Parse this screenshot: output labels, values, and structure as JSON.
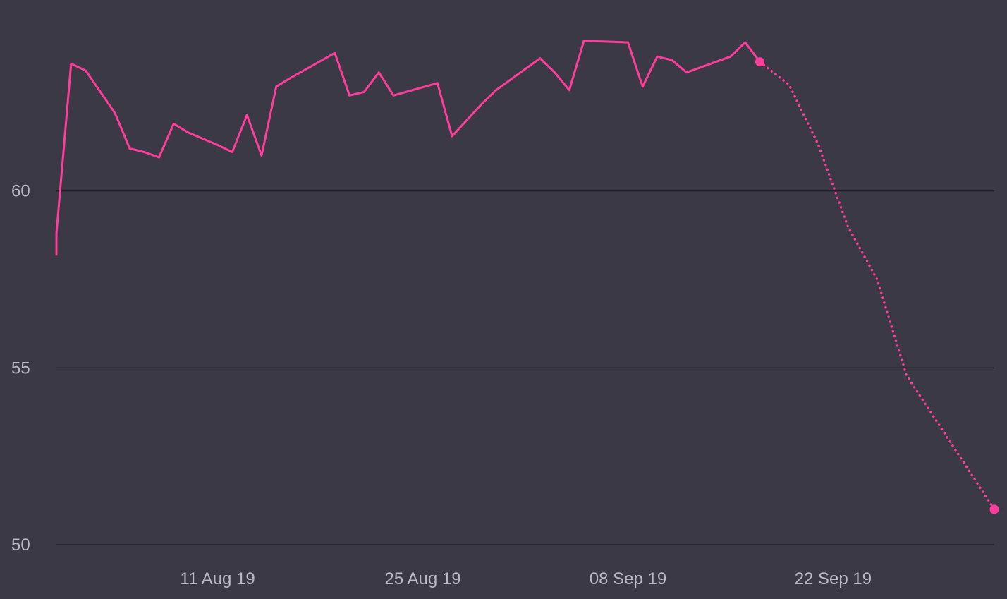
{
  "chart_data": {
    "type": "line",
    "title": "",
    "xlabel": "",
    "ylabel": "",
    "ylim": [
      50,
      65
    ],
    "xlim": [
      "2019-07-31",
      "2019-10-03"
    ],
    "grid": true,
    "legend": "none",
    "y_ticks": [
      {
        "value": 50,
        "label": "50"
      },
      {
        "value": 55,
        "label": "55"
      },
      {
        "value": 60,
        "label": "60"
      }
    ],
    "x_ticks": [
      {
        "date": "2019-08-11",
        "label": "11 Aug 19"
      },
      {
        "date": "2019-08-25",
        "label": "25 Aug 19"
      },
      {
        "date": "2019-09-08",
        "label": "08 Sep 19"
      },
      {
        "date": "2019-09-22",
        "label": "22 Sep 19"
      }
    ],
    "series": [
      {
        "style": "solid",
        "color": "#ff3d9a",
        "points": [
          [
            "2019-07-31",
            58.2
          ],
          [
            "2019-07-31",
            58.8
          ],
          [
            "2019-08-01",
            63.6
          ],
          [
            "2019-08-02",
            63.4
          ],
          [
            "2019-08-04",
            62.2
          ],
          [
            "2019-08-05",
            61.2
          ],
          [
            "2019-08-06",
            61.1
          ],
          [
            "2019-08-07",
            60.95
          ],
          [
            "2019-08-08",
            61.9
          ],
          [
            "2019-08-09",
            61.65
          ],
          [
            "2019-08-11",
            61.3
          ],
          [
            "2019-08-12",
            61.1
          ],
          [
            "2019-08-13",
            62.15
          ],
          [
            "2019-08-14",
            61.0
          ],
          [
            "2019-08-15",
            62.95
          ],
          [
            "2019-08-16",
            63.2
          ],
          [
            "2019-08-19",
            63.9
          ],
          [
            "2019-08-20",
            62.7
          ],
          [
            "2019-08-21",
            62.8
          ],
          [
            "2019-08-22",
            63.35
          ],
          [
            "2019-08-23",
            62.7
          ],
          [
            "2019-08-26",
            63.05
          ],
          [
            "2019-08-27",
            61.55
          ],
          [
            "2019-08-28",
            62.0
          ],
          [
            "2019-08-29",
            62.45
          ],
          [
            "2019-08-30",
            62.85
          ],
          [
            "2019-09-02",
            63.75
          ],
          [
            "2019-09-03",
            63.35
          ],
          [
            "2019-09-04",
            62.85
          ],
          [
            "2019-09-05",
            64.25
          ],
          [
            "2019-09-08",
            64.2
          ],
          [
            "2019-09-09",
            62.95
          ],
          [
            "2019-09-10",
            63.8
          ],
          [
            "2019-09-11",
            63.7
          ],
          [
            "2019-09-12",
            63.35
          ],
          [
            "2019-09-15",
            63.8
          ],
          [
            "2019-09-16",
            64.2
          ],
          [
            "2019-09-17",
            63.65
          ]
        ]
      },
      {
        "style": "dotted",
        "color": "#ff3d9a",
        "points": [
          [
            "2019-09-17",
            63.65
          ],
          [
            "2019-09-19",
            63.0
          ],
          [
            "2019-09-21",
            61.3
          ],
          [
            "2019-09-23",
            59.0
          ],
          [
            "2019-09-25",
            57.5
          ],
          [
            "2019-09-27",
            54.8
          ],
          [
            "2019-10-03",
            51.0
          ]
        ]
      }
    ]
  }
}
